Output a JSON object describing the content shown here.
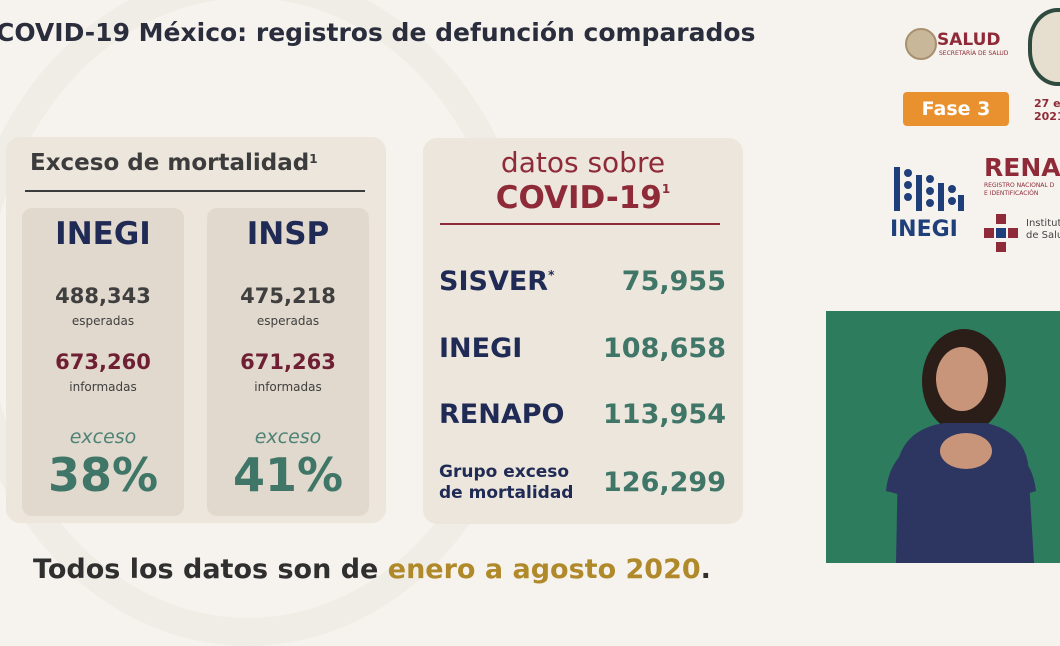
{
  "title": "COVID-19 México: registros de defunción comparados",
  "excess_panel": {
    "header": "Exceso de mortalidad",
    "header_sup": "1",
    "columns": [
      {
        "name": "INEGI",
        "expected": "488,343",
        "expected_label": "esperadas",
        "reported": "673,260",
        "reported_label": "informadas",
        "excess_label": "exceso",
        "excess_pct": "38%"
      },
      {
        "name": "INSP",
        "expected": "475,218",
        "expected_label": "esperadas",
        "reported": "671,263",
        "reported_label": "informadas",
        "excess_label": "exceso",
        "excess_pct": "41%"
      }
    ]
  },
  "covid_panel": {
    "subtitle": "datos sobre",
    "title": "COVID-19",
    "title_sup": "1",
    "rows": [
      {
        "label": "SISVER",
        "sup": "*",
        "value": "75,955"
      },
      {
        "label": "INEGI",
        "value": "108,658"
      },
      {
        "label": "RENAPO",
        "value": "113,954"
      },
      {
        "label_line1": "Grupo exceso",
        "label_line2": "de mortalidad",
        "value": "126,299"
      }
    ]
  },
  "footer": {
    "prefix": "Todos los datos son de ",
    "highlight": "enero a agosto 2020",
    "suffix": "."
  },
  "logos": {
    "salud": "SALUD",
    "salud_sub": "SECRETARÍA DE SALUD",
    "phase": "Fase 3",
    "date_line1": "27 e",
    "date_line2": "2021",
    "inegi": "INEGI",
    "renapo": "RENA",
    "renapo_sub1": "REGISTRO NACIONAL D",
    "renapo_sub2": "E IDENTIFICACIÓN",
    "insp_line1": "Instituto",
    "insp_line2": "de Salu"
  },
  "colors": {
    "navy": "#1f2a55",
    "maroon": "#8f2b39",
    "green": "#3f7668",
    "gold": "#b08a2a",
    "orange": "#e8912e"
  }
}
